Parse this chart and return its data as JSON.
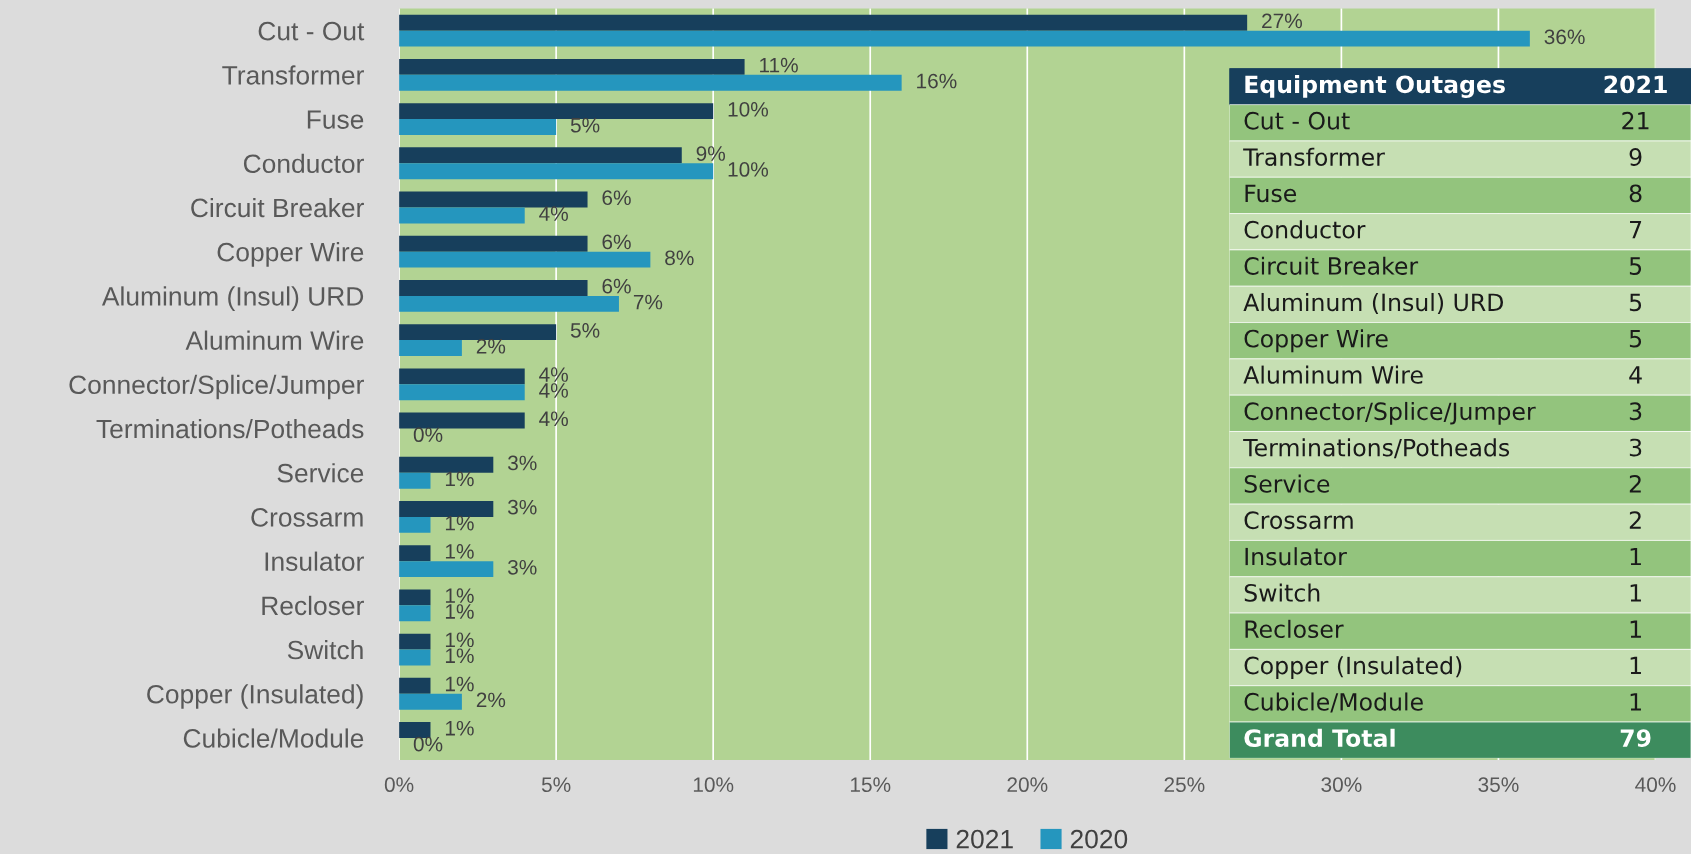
{
  "chart_data": [
    {
      "type": "bar",
      "orientation": "horizontal",
      "categories": [
        "Cut - Out",
        "Transformer",
        "Fuse",
        "Conductor",
        "Circuit Breaker",
        "Copper Wire",
        "Aluminum (Insul) URD",
        "Aluminum Wire",
        "Connector/Splice/Jumper",
        "Terminations/Potheads",
        "Service",
        "Crossarm",
        "Insulator",
        "Recloser",
        "Switch",
        "Copper (Insulated)",
        "Cubicle/Module"
      ],
      "series": [
        {
          "name": "2021",
          "color": "#173f5c",
          "values": [
            27,
            11,
            10,
            9,
            6,
            6,
            6,
            5,
            4,
            4,
            3,
            3,
            1,
            1,
            1,
            1,
            1
          ],
          "value_labels": [
            "27%",
            "11%",
            "10%",
            "9%",
            "6%",
            "6%",
            "6%",
            "5%",
            "4%",
            "4%",
            "3%",
            "3%",
            "1%",
            "1%",
            "1%",
            "1%",
            "1%"
          ]
        },
        {
          "name": "2020",
          "color": "#2596be",
          "values": [
            36,
            16,
            5,
            10,
            4,
            8,
            7,
            2,
            4,
            0,
            1,
            1,
            3,
            1,
            1,
            2,
            0
          ],
          "value_labels": [
            "36%",
            "16%",
            "5%",
            "10%",
            "4%",
            "8%",
            "7%",
            "2%",
            "4%",
            "0%",
            "1%",
            "1%",
            "3%",
            "1%",
            "1%",
            "2%",
            "0%"
          ]
        }
      ],
      "xlim": [
        0,
        40
      ],
      "xticks": [
        {
          "value": 0,
          "label": "0%"
        },
        {
          "value": 5,
          "label": "5%"
        },
        {
          "value": 10,
          "label": "10%"
        },
        {
          "value": 15,
          "label": "15%"
        },
        {
          "value": 20,
          "label": "20%"
        },
        {
          "value": 25,
          "label": "25%"
        },
        {
          "value": 30,
          "label": "30%"
        },
        {
          "value": 35,
          "label": "35%"
        },
        {
          "value": 40,
          "label": "40%"
        }
      ],
      "grid": "x",
      "legend": "bottom"
    },
    {
      "type": "heatmap",
      "ylabel": "Equipment Outages",
      "categories": [
        "2021"
      ],
      "y_categories": [
        "Cut - Out",
        "Transformer",
        "Fuse",
        "Conductor",
        "Circuit Breaker",
        "Aluminum (Insul) URD",
        "Copper Wire",
        "Aluminum Wire",
        "Connector/Splice/Jumper",
        "Terminations/Potheads",
        "Service",
        "Crossarm",
        "Insulator",
        "Switch",
        "Recloser",
        "Copper (Insulated)",
        "Cubicle/Module",
        "Grand Total"
      ],
      "cells": [
        [
          21
        ],
        [
          9
        ],
        [
          8
        ],
        [
          7
        ],
        [
          5
        ],
        [
          5
        ],
        [
          5
        ],
        [
          4
        ],
        [
          3
        ],
        [
          3
        ],
        [
          2
        ],
        [
          2
        ],
        [
          1
        ],
        [
          1
        ],
        [
          1
        ],
        [
          1
        ],
        [
          1
        ],
        [
          79
        ]
      ],
      "data_labels": true
    }
  ]
}
